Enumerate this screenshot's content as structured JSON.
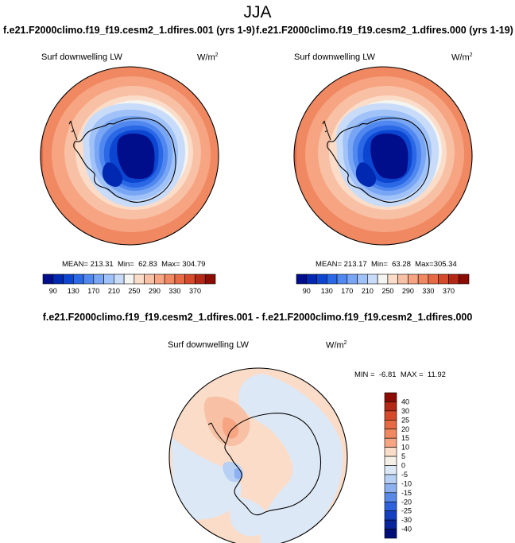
{
  "title": "JJA",
  "panels": [
    {
      "run_title": "f.e21.F2000climo.f19_f19.cesm2_1.dfires.001 (yrs 1-9)",
      "variable": "Surf downwelling LW",
      "units": "W/m",
      "units_exp": "2",
      "stats": {
        "mean": "213.31",
        "min": "62.83",
        "max": "304.79"
      }
    },
    {
      "run_title": "f.e21.F2000climo.f19_f19.cesm2_1.dfires.000 (yrs 1-19)",
      "variable": "Surf downwelling LW",
      "units": "W/m",
      "units_exp": "2",
      "stats": {
        "mean": "213.17",
        "min": "63.28",
        "max": "305.34"
      }
    }
  ],
  "colorbar": {
    "tick_labels": [
      "90",
      "130",
      "170",
      "210",
      "250",
      "290",
      "330",
      "370"
    ],
    "colors": [
      "#000e8c",
      "#0028b0",
      "#0c46d0",
      "#2a68e6",
      "#5088f0",
      "#78a6f4",
      "#a0c2f8",
      "#c8dcfa",
      "#f4f4f0",
      "#fadcc8",
      "#f8c0a4",
      "#f6a482",
      "#f08862",
      "#e66a44",
      "#d44a2a",
      "#b42816",
      "#8c0c04"
    ]
  },
  "difference": {
    "title": "f.e21.F2000climo.f19_f19.cesm2_1.dfires.001 - f.e21.F2000climo.f19_f19.cesm2_1.dfires.000",
    "variable": "Surf downwelling LW",
    "units": "W/m",
    "units_exp": "2",
    "stats": {
      "min": "-6.81",
      "max": "11.92"
    },
    "colorbar": {
      "tick_labels": [
        "40",
        "30",
        "25",
        "20",
        "15",
        "10",
        "5",
        "0",
        "-5",
        "-10",
        "-15",
        "-20",
        "-25",
        "-30",
        "-40"
      ],
      "colors": [
        "#8c0c04",
        "#b42816",
        "#d44a2a",
        "#e66a44",
        "#f08862",
        "#f6a482",
        "#fadcc8",
        "#f4f0e8",
        "#dde8f6",
        "#b8d0f4",
        "#8cb0f0",
        "#5a8ae8",
        "#2e62dc",
        "#1440c0",
        "#0a249c",
        "#000e78"
      ]
    }
  }
}
